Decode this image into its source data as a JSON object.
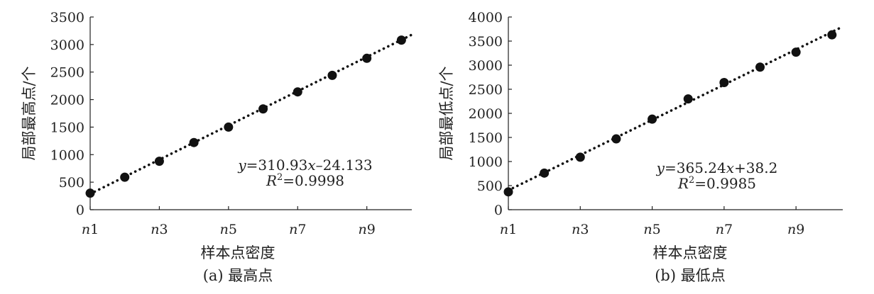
{
  "chart_data": [
    {
      "type": "scatter",
      "caption": "(a) 最高点",
      "xlabel": "样本点密度",
      "ylabel": "局部最高点/个",
      "x_ticks": [
        {
          "pre": "n",
          "num": "1"
        },
        {
          "pre": "n",
          "num": "3"
        },
        {
          "pre": "n",
          "num": "5"
        },
        {
          "pre": "n",
          "num": "7"
        },
        {
          "pre": "n",
          "num": "9"
        }
      ],
      "x": [
        1,
        2,
        3,
        4,
        5,
        6,
        7,
        8,
        9,
        10
      ],
      "xlim": [
        1,
        10.3
      ],
      "ylim": [
        0,
        3500
      ],
      "y_ticks": [
        0,
        500,
        1000,
        1500,
        2000,
        2500,
        3000,
        3500
      ],
      "values": [
        300,
        590,
        880,
        1220,
        1500,
        1830,
        2140,
        2440,
        2750,
        3080
      ],
      "trendline": {
        "slope": 310.93,
        "intercept": -24.133,
        "x_range": [
          1,
          10.3
        ],
        "style": "dotted"
      },
      "equation": {
        "y": "y",
        "mid": "=310.93",
        "x": "x",
        "rest": "–24.133"
      },
      "r2": {
        "r": "R",
        "sup": "2",
        "rest": "=0.9998"
      }
    },
    {
      "type": "scatter",
      "caption": "(b) 最低点",
      "xlabel": "样本点密度",
      "ylabel": "局部最低点/个",
      "x_ticks": [
        {
          "pre": "n",
          "num": "1"
        },
        {
          "pre": "n",
          "num": "3"
        },
        {
          "pre": "n",
          "num": "5"
        },
        {
          "pre": "n",
          "num": "7"
        },
        {
          "pre": "n",
          "num": "9"
        }
      ],
      "x": [
        1,
        2,
        3,
        4,
        5,
        6,
        7,
        8,
        9,
        10
      ],
      "xlim": [
        1,
        10.3
      ],
      "ylim": [
        0,
        4000
      ],
      "y_ticks": [
        0,
        500,
        1000,
        1500,
        2000,
        2500,
        3000,
        3500,
        4000
      ],
      "values": [
        370,
        760,
        1090,
        1470,
        1880,
        2300,
        2640,
        2960,
        3270,
        3630
      ],
      "trendline": {
        "slope": 365.24,
        "intercept": 38.2,
        "x_range": [
          1,
          10.3
        ],
        "style": "dotted"
      },
      "equation": {
        "y": "y",
        "mid": "=365.24",
        "x": "x",
        "rest": "+38.2"
      },
      "r2": {
        "r": "R",
        "sup": "2",
        "rest": "=0.9985"
      }
    }
  ]
}
